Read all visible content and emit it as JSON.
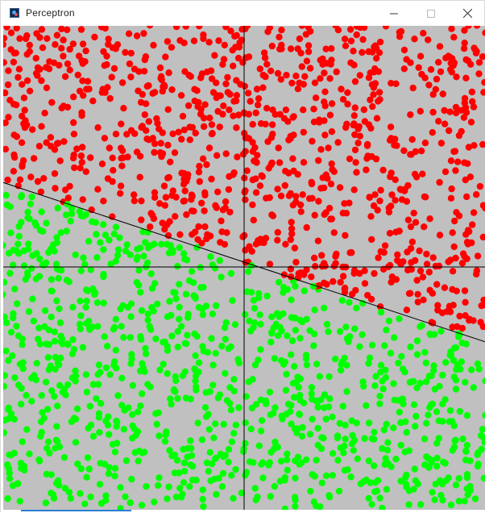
{
  "window": {
    "title": "Perceptron",
    "icon": "perceptron-app-icon",
    "controls": {
      "minimize": "minimize-icon",
      "maximize": "maximize-icon",
      "close": "close-icon"
    }
  },
  "colors": {
    "canvas_background": "#c0c0c0",
    "class_above": "#ff0000",
    "class_below": "#00ff00",
    "axes": "#000000",
    "separator_line": "#000000"
  },
  "chart_data": {
    "type": "scatter",
    "xlim": [
      -1,
      1
    ],
    "ylim": [
      -1,
      1
    ],
    "axes_through_origin": true,
    "decision_line": {
      "slope": -0.33,
      "intercept": 0.02
    },
    "class_above_color": "#ff0000",
    "class_below_color": "#00ff00",
    "point_count": 2000
  }
}
